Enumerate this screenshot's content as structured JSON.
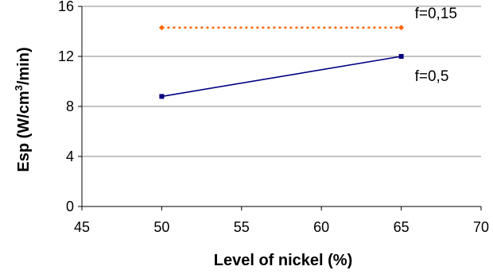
{
  "chart_data": {
    "type": "scatter",
    "title": "",
    "xlabel": "Level of nickel (%)",
    "ylabel": {
      "pre": "Esp (W/cm",
      "sup": "3",
      "post": "/min)"
    },
    "xlim": [
      45,
      70
    ],
    "ylim": [
      0,
      16
    ],
    "xticks": [
      "45",
      "50",
      "55",
      "60",
      "65",
      "70"
    ],
    "yticks": [
      "0",
      "4",
      "8",
      "12",
      "16"
    ],
    "grid": "horizontal",
    "series": [
      {
        "name": "f=0,15",
        "x": [
          50,
          65
        ],
        "y": [
          14.3,
          14.3
        ],
        "color": "#ff6600",
        "line": "dotted",
        "marker": "diamond"
      },
      {
        "name": "f=0,5",
        "x": [
          50,
          65
        ],
        "y": [
          8.8,
          12.0
        ],
        "color": "#000080",
        "line": "solid",
        "marker": "square"
      }
    ]
  }
}
